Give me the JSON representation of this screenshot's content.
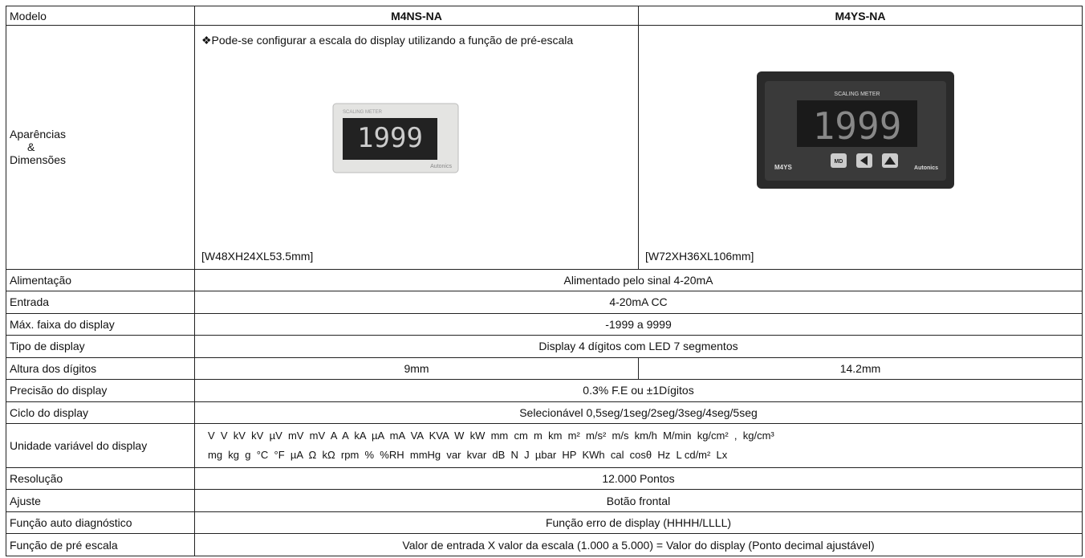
{
  "table": {
    "columns": [
      "Modelo",
      "M4NS-NA",
      "M4YS-NA"
    ],
    "appearance": {
      "label_lines": [
        "Aparências",
        "&",
        "Dimensões"
      ],
      "note": "❖Pode-se configurar a escala do display utilizando a função de pré-escala",
      "display_digits": "1999",
      "meter_brand": "Autonics",
      "meter_caption": "SCALING METER",
      "model_badge": "M4YS",
      "button_label": "MD",
      "dimensions": [
        "[W48XH24XL53.5mm]",
        "[W72XH36XL106mm]"
      ]
    },
    "rows": [
      {
        "label": "Alimentação",
        "value": "Alimentado pelo sinal 4-20mA"
      },
      {
        "label": "Entrada",
        "value": "4-20mA CC"
      },
      {
        "label": "Máx. faixa do display",
        "value": "-1999 a 9999"
      },
      {
        "label": "Tipo de display",
        "value": "Display 4 dígitos com LED 7 segmentos"
      },
      {
        "label": "Altura dos dígitos",
        "values": [
          "9mm",
          "14.2mm"
        ]
      },
      {
        "label": "Precisão do display",
        "value": "0.3% F.E ou ±1Dígitos"
      },
      {
        "label": "Ciclo do display",
        "value": "Selecionável 0,5seg/1seg/2seg/3seg/4seg/5seg"
      },
      {
        "label": "Unidade variável do display",
        "lines": [
          "V  V  kV  kV  µV  mV  mV  A  A  kA  µA  mA  VA  KVA  W  kW  mm  cm  m  km  m²  m/s²  m/s  km/h  M/min  kg/cm²  ,  kg/cm³",
          "mg  kg  g  °C  °F  µA  Ω  kΩ  rpm  %  %RH  mmHg  var  kvar  dB  N  J  µbar  HP  KWh  cal  cosθ  Hz  L cd/m²  Lx"
        ]
      },
      {
        "label": "Resolução",
        "value": "12.000 Pontos"
      },
      {
        "label": "Ajuste",
        "value": "Botão frontal"
      },
      {
        "label": "Função auto diagnóstico",
        "value": "Função erro de display (HHHH/LLLL)"
      },
      {
        "label": "Função de pré escala",
        "value": "Valor de entrada X valor da escala (1.000 a 5.000) = Valor do display (Ponto decimal ajustável)"
      }
    ]
  }
}
